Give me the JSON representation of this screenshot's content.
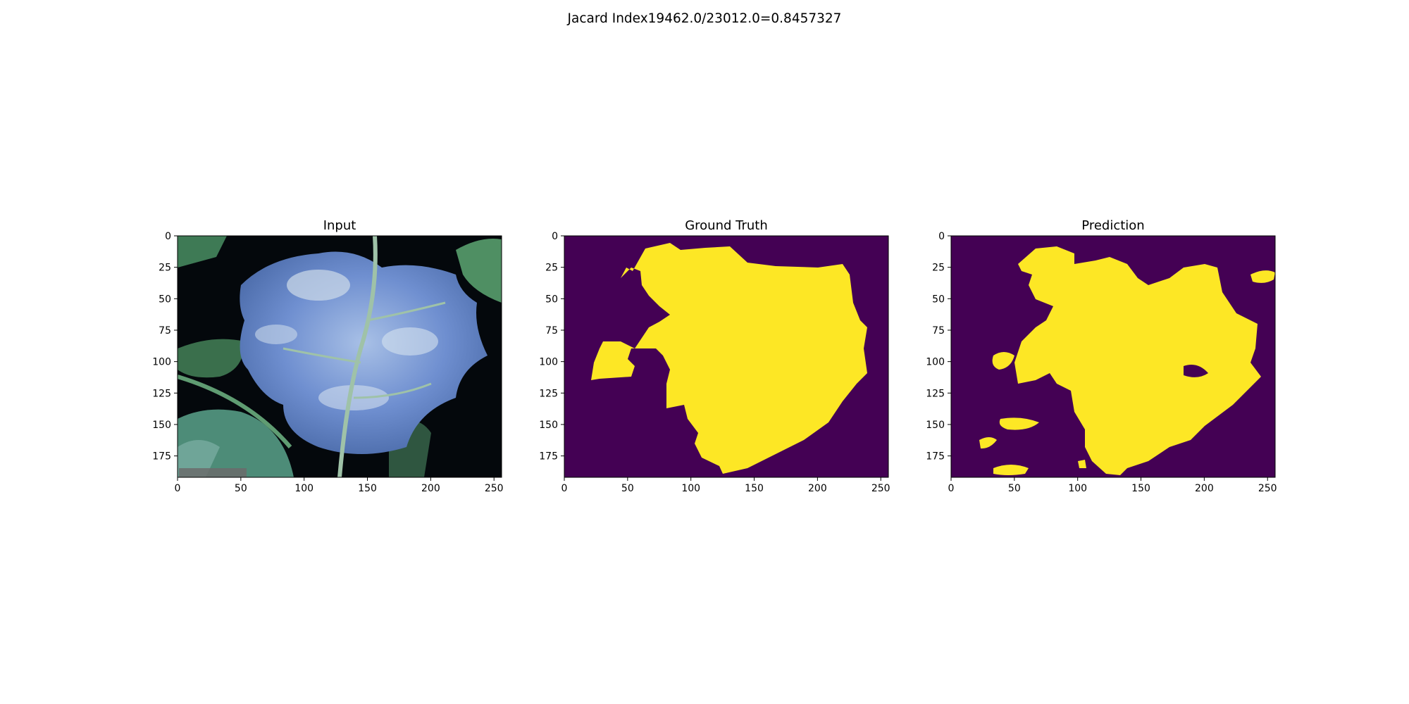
{
  "figure": {
    "suptitle": "Jacard Index19462.0/23012.0=0.8457327"
  },
  "colors": {
    "background_class": "#440154",
    "foreground_class": "#fde725",
    "leaf_blue": "#6f8fd0",
    "leaf_green": "#4f8f63",
    "image_background": "#04080c"
  },
  "chart_data": [
    {
      "type": "heatmap",
      "title": "Input",
      "content": "RGB image of a leaf",
      "image_width": 256,
      "image_height": 192,
      "xticks": [
        0,
        50,
        100,
        150,
        200,
        250
      ],
      "yticks": [
        0,
        25,
        50,
        75,
        100,
        125,
        150,
        175
      ],
      "xlim": [
        0,
        256
      ],
      "ylim": [
        192,
        0
      ]
    },
    {
      "type": "heatmap",
      "title": "Ground Truth",
      "content": "binary mask",
      "colormap": "viridis",
      "image_width": 256,
      "image_height": 192,
      "xticks": [
        0,
        50,
        100,
        150,
        200,
        250
      ],
      "yticks": [
        0,
        25,
        50,
        75,
        100,
        125,
        150,
        175
      ],
      "xlim": [
        0,
        256
      ],
      "ylim": [
        192,
        0
      ]
    },
    {
      "type": "heatmap",
      "title": "Prediction",
      "content": "binary mask",
      "colormap": "viridis",
      "image_width": 256,
      "image_height": 192,
      "xticks": [
        0,
        50,
        100,
        150,
        200,
        250
      ],
      "yticks": [
        0,
        25,
        50,
        75,
        100,
        125,
        150,
        175
      ],
      "xlim": [
        0,
        256
      ],
      "ylim": [
        192,
        0
      ]
    }
  ]
}
